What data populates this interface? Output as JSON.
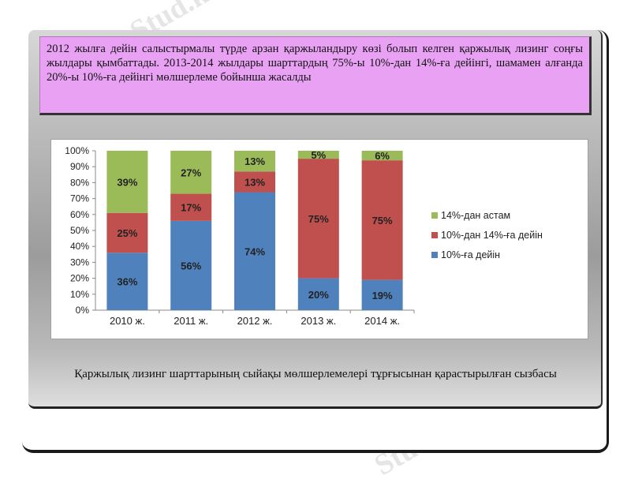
{
  "header_text": "2012 жылға дейін салыстырмалы түрде арзан қаржыландыру көзі болып келген қаржылық лизинг соңғы жылдары қымбаттады. 2013-2014 жылдары шарттардың 75%-ы 10%-дан 14%-ға дейінгі, шамамен алғанда 20%-ы 10%-ға дейінгі мөлшерлеме бойынша жасалды",
  "caption": "Қаржылық лизинг шарттарының сыйақы мөлшерлемелері тұрғысынан қарастырылған сызбасы",
  "watermark": "Stud.kz - Stud.kz",
  "chart_data": {
    "type": "bar",
    "stacked": true,
    "percent": true,
    "categories": [
      "2010 ж.",
      "2011 ж.",
      "2012 ж.",
      "2013 ж.",
      "2014 ж."
    ],
    "series": [
      {
        "name": "10%-ға дейін",
        "values": [
          36,
          56,
          74,
          20,
          19
        ],
        "labels": [
          "36%",
          "56%",
          "74%",
          "20%",
          "19%"
        ],
        "color": "#4f81bd"
      },
      {
        "name": "10%-дан 14%-ға дейін",
        "values": [
          25,
          17,
          13,
          75,
          75
        ],
        "labels": [
          "25%",
          "17%",
          "13%",
          "75%",
          "75%"
        ],
        "color": "#c0504d"
      },
      {
        "name": "14%-дан астам",
        "values": [
          39,
          27,
          13,
          5,
          6
        ],
        "labels": [
          "39%",
          "27%",
          "13%",
          "5%",
          "6%"
        ],
        "color": "#9bbb59"
      }
    ],
    "y_ticks": [
      "0%",
      "10%",
      "20%",
      "30%",
      "40%",
      "50%",
      "60%",
      "70%",
      "80%",
      "90%",
      "100%"
    ],
    "ylim": [
      0,
      100
    ],
    "grid": false,
    "legend_position": "right",
    "legend_order": [
      "14%-дан астам",
      "10%-дан 14%-ға дейін",
      "10%-ға дейін"
    ]
  }
}
